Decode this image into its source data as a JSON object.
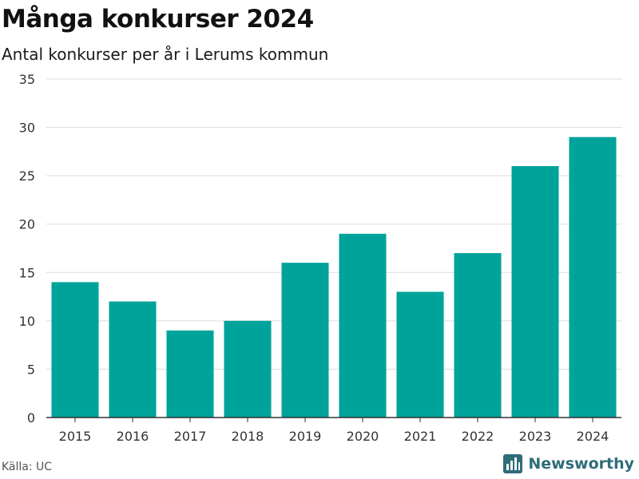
{
  "colors": {
    "bar": "#00a39a",
    "grid": "#dcdcdc",
    "axis": "#333333",
    "brand": "#2f6d78"
  },
  "header": {
    "title": "Många konkurser 2024",
    "subtitle": "Antal konkurser per år i Lerums kommun"
  },
  "footer": {
    "source": "Källa: UC",
    "brand_name": "Newsworthy",
    "brand_icon": "bar-chart-logo-icon"
  },
  "chart_data": {
    "type": "bar",
    "title": "Många konkurser 2024",
    "subtitle": "Antal konkurser per år i Lerums kommun",
    "xlabel": "",
    "ylabel": "",
    "categories": [
      "2015",
      "2016",
      "2017",
      "2018",
      "2019",
      "2020",
      "2021",
      "2022",
      "2023",
      "2024"
    ],
    "values": [
      14,
      12,
      9,
      10,
      16,
      19,
      13,
      17,
      26,
      29
    ],
    "ylim": [
      0,
      35
    ],
    "yticks": [
      0,
      5,
      10,
      15,
      20,
      25,
      30,
      35
    ],
    "grid": true,
    "legend": "none"
  }
}
